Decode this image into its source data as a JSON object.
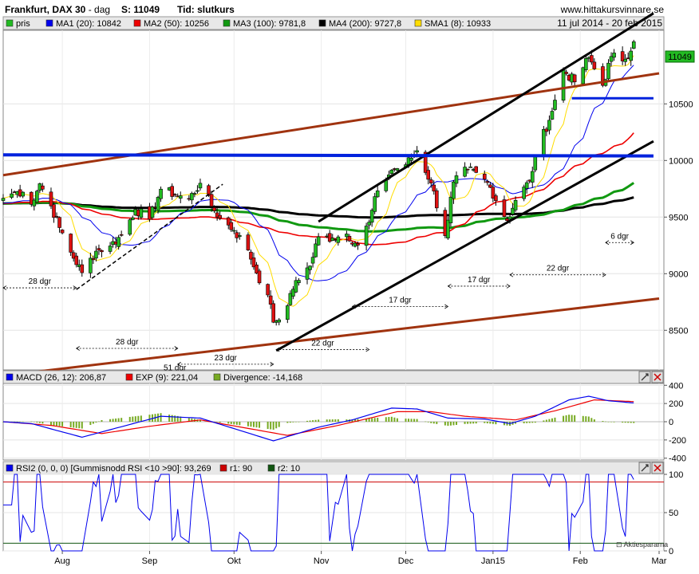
{
  "header": {
    "title": "Frankfurt, DAX 30",
    "title_sep": " - ",
    "period": "dag",
    "price_label": "S: 11049",
    "time_label": "Tid: slutkurs",
    "site": "www.hittakursvinnare.se",
    "date_range": "11 jul 2014 - 20 feb 2015"
  },
  "colors": {
    "price": "#22bb22",
    "ma1": "#0000ee",
    "ma2": "#ee0000",
    "ma3": "#119911",
    "ma4": "#000000",
    "sma1": "#ffdd00",
    "channel_brown": "#a0330f",
    "support_blue": "#0022dd",
    "macd_line": "#0000ee",
    "exp_line": "#ee0000",
    "divergence": "#77aa22",
    "rsi_line": "#0000ee",
    "r1_line": "#cc0000",
    "r2_line": "#115511"
  },
  "legend_main": [
    {
      "label": "pris",
      "color": "#22bb22"
    },
    {
      "label": "MA1 (20): 10842",
      "color": "#0000ee"
    },
    {
      "label": "MA2 (50): 10256",
      "color": "#ee0000"
    },
    {
      "label": "MA3 (100): 9781,8",
      "color": "#119911"
    },
    {
      "label": "MA4 (200): 9727,8",
      "color": "#000000"
    },
    {
      "label": "SMA1 (8): 10933",
      "color": "#ffdd00"
    }
  ],
  "legend_macd": [
    {
      "label": "MACD (26, 12): 206,87",
      "color": "#0000ee"
    },
    {
      "label": "EXP (9): 221,04",
      "color": "#ee0000"
    },
    {
      "label": "Divergence: -14,168",
      "color": "#77aa22"
    }
  ],
  "legend_rsi": [
    {
      "label": "RSI2 (0, 0, 0) [Gummisnodd RSI <10 >90]: 93,269",
      "color": "#0000ee"
    },
    {
      "label": "r1: 90",
      "color": "#cc0000"
    },
    {
      "label": "r2: 10",
      "color": "#115511"
    }
  ],
  "watermark": "Aktiespararna",
  "last_price_tag": "11049",
  "chart_data": [
    {
      "type": "candlestick",
      "name": "price",
      "y_ticks": [
        8500,
        9000,
        9500,
        10000,
        10500
      ],
      "y_tick_labels": [
        "8500",
        "9000",
        "9500",
        "10000",
        "10500"
      ],
      "ylim": [
        8150,
        11150
      ],
      "x_months": [
        "Aug",
        "Sep",
        "Okt",
        "Nov",
        "Dec",
        "Jan15",
        "Feb",
        "Mar"
      ],
      "x_month_dates": [
        "2014-08-01",
        "2014-09-01",
        "2014-10-01",
        "2014-11-01",
        "2014-12-01",
        "2015-01-01",
        "2015-02-01",
        "2015-03-01"
      ],
      "close_anchors": [
        [
          "2014-07-11",
          9666
        ],
        [
          "2014-07-15",
          9720
        ],
        [
          "2014-07-18",
          9720
        ],
        [
          "2014-07-21",
          9612
        ],
        [
          "2014-07-24",
          9795
        ],
        [
          "2014-07-28",
          9598
        ],
        [
          "2014-07-31",
          9407
        ],
        [
          "2014-08-04",
          9189
        ],
        [
          "2014-08-08",
          9009
        ],
        [
          "2014-08-13",
          9199
        ],
        [
          "2014-08-18",
          9245
        ],
        [
          "2014-08-22",
          9339
        ],
        [
          "2014-08-27",
          9569
        ],
        [
          "2014-09-01",
          9480
        ],
        [
          "2014-09-05",
          9747
        ],
        [
          "2014-09-10",
          9700
        ],
        [
          "2014-09-15",
          9659
        ],
        [
          "2014-09-19",
          9799
        ],
        [
          "2014-09-23",
          9595
        ],
        [
          "2014-09-26",
          9490
        ],
        [
          "2014-10-01",
          9382
        ],
        [
          "2014-10-06",
          9209
        ],
        [
          "2014-10-09",
          9005
        ],
        [
          "2014-10-13",
          8812
        ],
        [
          "2014-10-15",
          8571
        ],
        [
          "2014-10-16",
          8582
        ],
        [
          "2014-10-20",
          8717
        ],
        [
          "2014-10-23",
          8940
        ],
        [
          "2014-10-28",
          9068
        ],
        [
          "2014-10-31",
          9326
        ],
        [
          "2014-11-05",
          9315
        ],
        [
          "2014-11-10",
          9351
        ],
        [
          "2014-11-14",
          9252
        ],
        [
          "2014-11-18",
          9456
        ],
        [
          "2014-11-21",
          9732
        ],
        [
          "2014-11-26",
          9915
        ],
        [
          "2014-12-01",
          9963
        ],
        [
          "2014-12-05",
          10087
        ],
        [
          "2014-12-10",
          9800
        ],
        [
          "2014-12-15",
          9335
        ],
        [
          "2014-12-18",
          9811
        ],
        [
          "2014-12-23",
          9922
        ],
        [
          "2014-12-30",
          9805
        ],
        [
          "2015-01-06",
          9469
        ],
        [
          "2015-01-09",
          9648
        ],
        [
          "2015-01-14",
          9817
        ],
        [
          "2015-01-16",
          10032
        ],
        [
          "2015-01-22",
          10435
        ],
        [
          "2015-01-26",
          10798
        ],
        [
          "2015-01-30",
          10694
        ],
        [
          "2015-02-04",
          10911
        ],
        [
          "2015-02-09",
          10663
        ],
        [
          "2015-02-12",
          10919
        ],
        [
          "2015-02-17",
          10895
        ],
        [
          "2015-02-20",
          11049
        ]
      ],
      "overlays": [
        {
          "name": "MA1 (20)",
          "last": 10842
        },
        {
          "name": "MA2 (50)",
          "last": 10256
        },
        {
          "name": "MA3 (100)",
          "last": 9781.8
        },
        {
          "name": "MA4 (200)",
          "last": 9727.8
        },
        {
          "name": "SMA1 (8)",
          "last": 10933
        }
      ],
      "trendlines": [
        {
          "name": "upper-long-channel",
          "p1": [
            "2014-07-11",
            9870
          ],
          "p2": [
            "2015-03-01",
            10770
          ]
        },
        {
          "name": "lower-long-channel",
          "p1": [
            "2014-07-11",
            8100
          ],
          "p2": [
            "2015-03-01",
            8780
          ]
        },
        {
          "name": "up-channel-upper",
          "p1": [
            "2014-10-31",
            9460
          ],
          "p2": [
            "2015-02-27",
            11300
          ]
        },
        {
          "name": "up-channel-lower",
          "p1": [
            "2014-10-16",
            8320
          ],
          "p2": [
            "2015-02-27",
            10170
          ]
        },
        {
          "name": "aug-dashed-trend",
          "p1": [
            "2014-08-06",
            8860
          ],
          "p2": [
            "2014-09-27",
            9790
          ]
        },
        {
          "name": "resistance-10050",
          "p1": [
            "2014-07-11",
            10050
          ],
          "p2": [
            "2015-02-27",
            10040
          ]
        },
        {
          "name": "support-10550",
          "p1": [
            "2015-01-29",
            10550
          ],
          "p2": [
            "2015-02-27",
            10550
          ]
        }
      ],
      "cycle_annotations": [
        {
          "label": "28 dgr",
          "x1": "2014-07-11",
          "x2": "2014-08-06",
          "y": 8875
        },
        {
          "label": "28 dgr",
          "x1": "2014-08-06",
          "x2": "2014-09-11",
          "y": 8340
        },
        {
          "label": "23 dgr",
          "x1": "2014-09-11",
          "x2": "2014-10-15",
          "y": 8200
        },
        {
          "label": "51 dgr",
          "x1": "2014-08-06",
          "x2": "2014-10-15",
          "y": 8110
        },
        {
          "label": "22 dgr",
          "x1": "2014-10-16",
          "x2": "2014-11-18",
          "y": 8330
        },
        {
          "label": "17 dgr",
          "x1": "2014-11-12",
          "x2": "2014-12-16",
          "y": 8710
        },
        {
          "label": "17 dgr",
          "x1": "2014-12-16",
          "x2": "2015-01-07",
          "y": 8890
        },
        {
          "label": "22 dgr",
          "x1": "2015-01-07",
          "x2": "2015-02-10",
          "y": 8990
        },
        {
          "label": "6 dgr",
          "x1": "2015-02-10",
          "x2": "2015-02-20",
          "y": 9275
        }
      ]
    },
    {
      "type": "line",
      "name": "MACD (26, 12)",
      "y_ticks": [
        -400,
        -200,
        0,
        200,
        400
      ],
      "y_tick_labels": [
        "-400",
        "-200",
        "0",
        "200",
        "400"
      ],
      "ylim": [
        -420,
        420
      ],
      "series": [
        {
          "name": "MACD (26, 12)",
          "last": 206.87,
          "anchors": [
            [
              "2014-07-11",
              0
            ],
            [
              "2014-07-21",
              -20
            ],
            [
              "2014-08-08",
              -170
            ],
            [
              "2014-08-25",
              -30
            ],
            [
              "2014-09-05",
              60
            ],
            [
              "2014-09-19",
              40
            ],
            [
              "2014-10-15",
              -210
            ],
            [
              "2014-10-31",
              -60
            ],
            [
              "2014-11-12",
              20
            ],
            [
              "2014-11-26",
              150
            ],
            [
              "2014-12-05",
              140
            ],
            [
              "2014-12-16",
              40
            ],
            [
              "2014-12-29",
              30
            ],
            [
              "2015-01-07",
              -20
            ],
            [
              "2015-01-16",
              60
            ],
            [
              "2015-01-28",
              240
            ],
            [
              "2015-02-04",
              280
            ],
            [
              "2015-02-11",
              230
            ],
            [
              "2015-02-20",
              207
            ]
          ]
        },
        {
          "name": "EXP (9)",
          "last": 221.04,
          "anchors": [
            [
              "2014-07-11",
              0
            ],
            [
              "2014-07-28",
              -40
            ],
            [
              "2014-08-15",
              -130
            ],
            [
              "2014-09-01",
              -50
            ],
            [
              "2014-09-19",
              20
            ],
            [
              "2014-10-20",
              -150
            ],
            [
              "2014-11-07",
              -40
            ],
            [
              "2014-11-28",
              110
            ],
            [
              "2014-12-10",
              110
            ],
            [
              "2014-12-22",
              60
            ],
            [
              "2015-01-09",
              20
            ],
            [
              "2015-01-23",
              120
            ],
            [
              "2015-02-06",
              240
            ],
            [
              "2015-02-20",
              221
            ]
          ]
        },
        {
          "name": "Divergence",
          "last": -14.168
        }
      ]
    },
    {
      "type": "line",
      "name": "RSI2 (0, 0, 0) [Gummisnodd RSI <10 >90]",
      "y_ticks": [
        0,
        50,
        100
      ],
      "y_tick_labels": [
        "0",
        "50",
        "100"
      ],
      "ylim": [
        0,
        100
      ],
      "series": [
        {
          "name": "RSI2",
          "last": 93.269
        },
        {
          "name": "r1",
          "value": 90
        },
        {
          "name": "r2",
          "value": 10
        }
      ]
    }
  ]
}
